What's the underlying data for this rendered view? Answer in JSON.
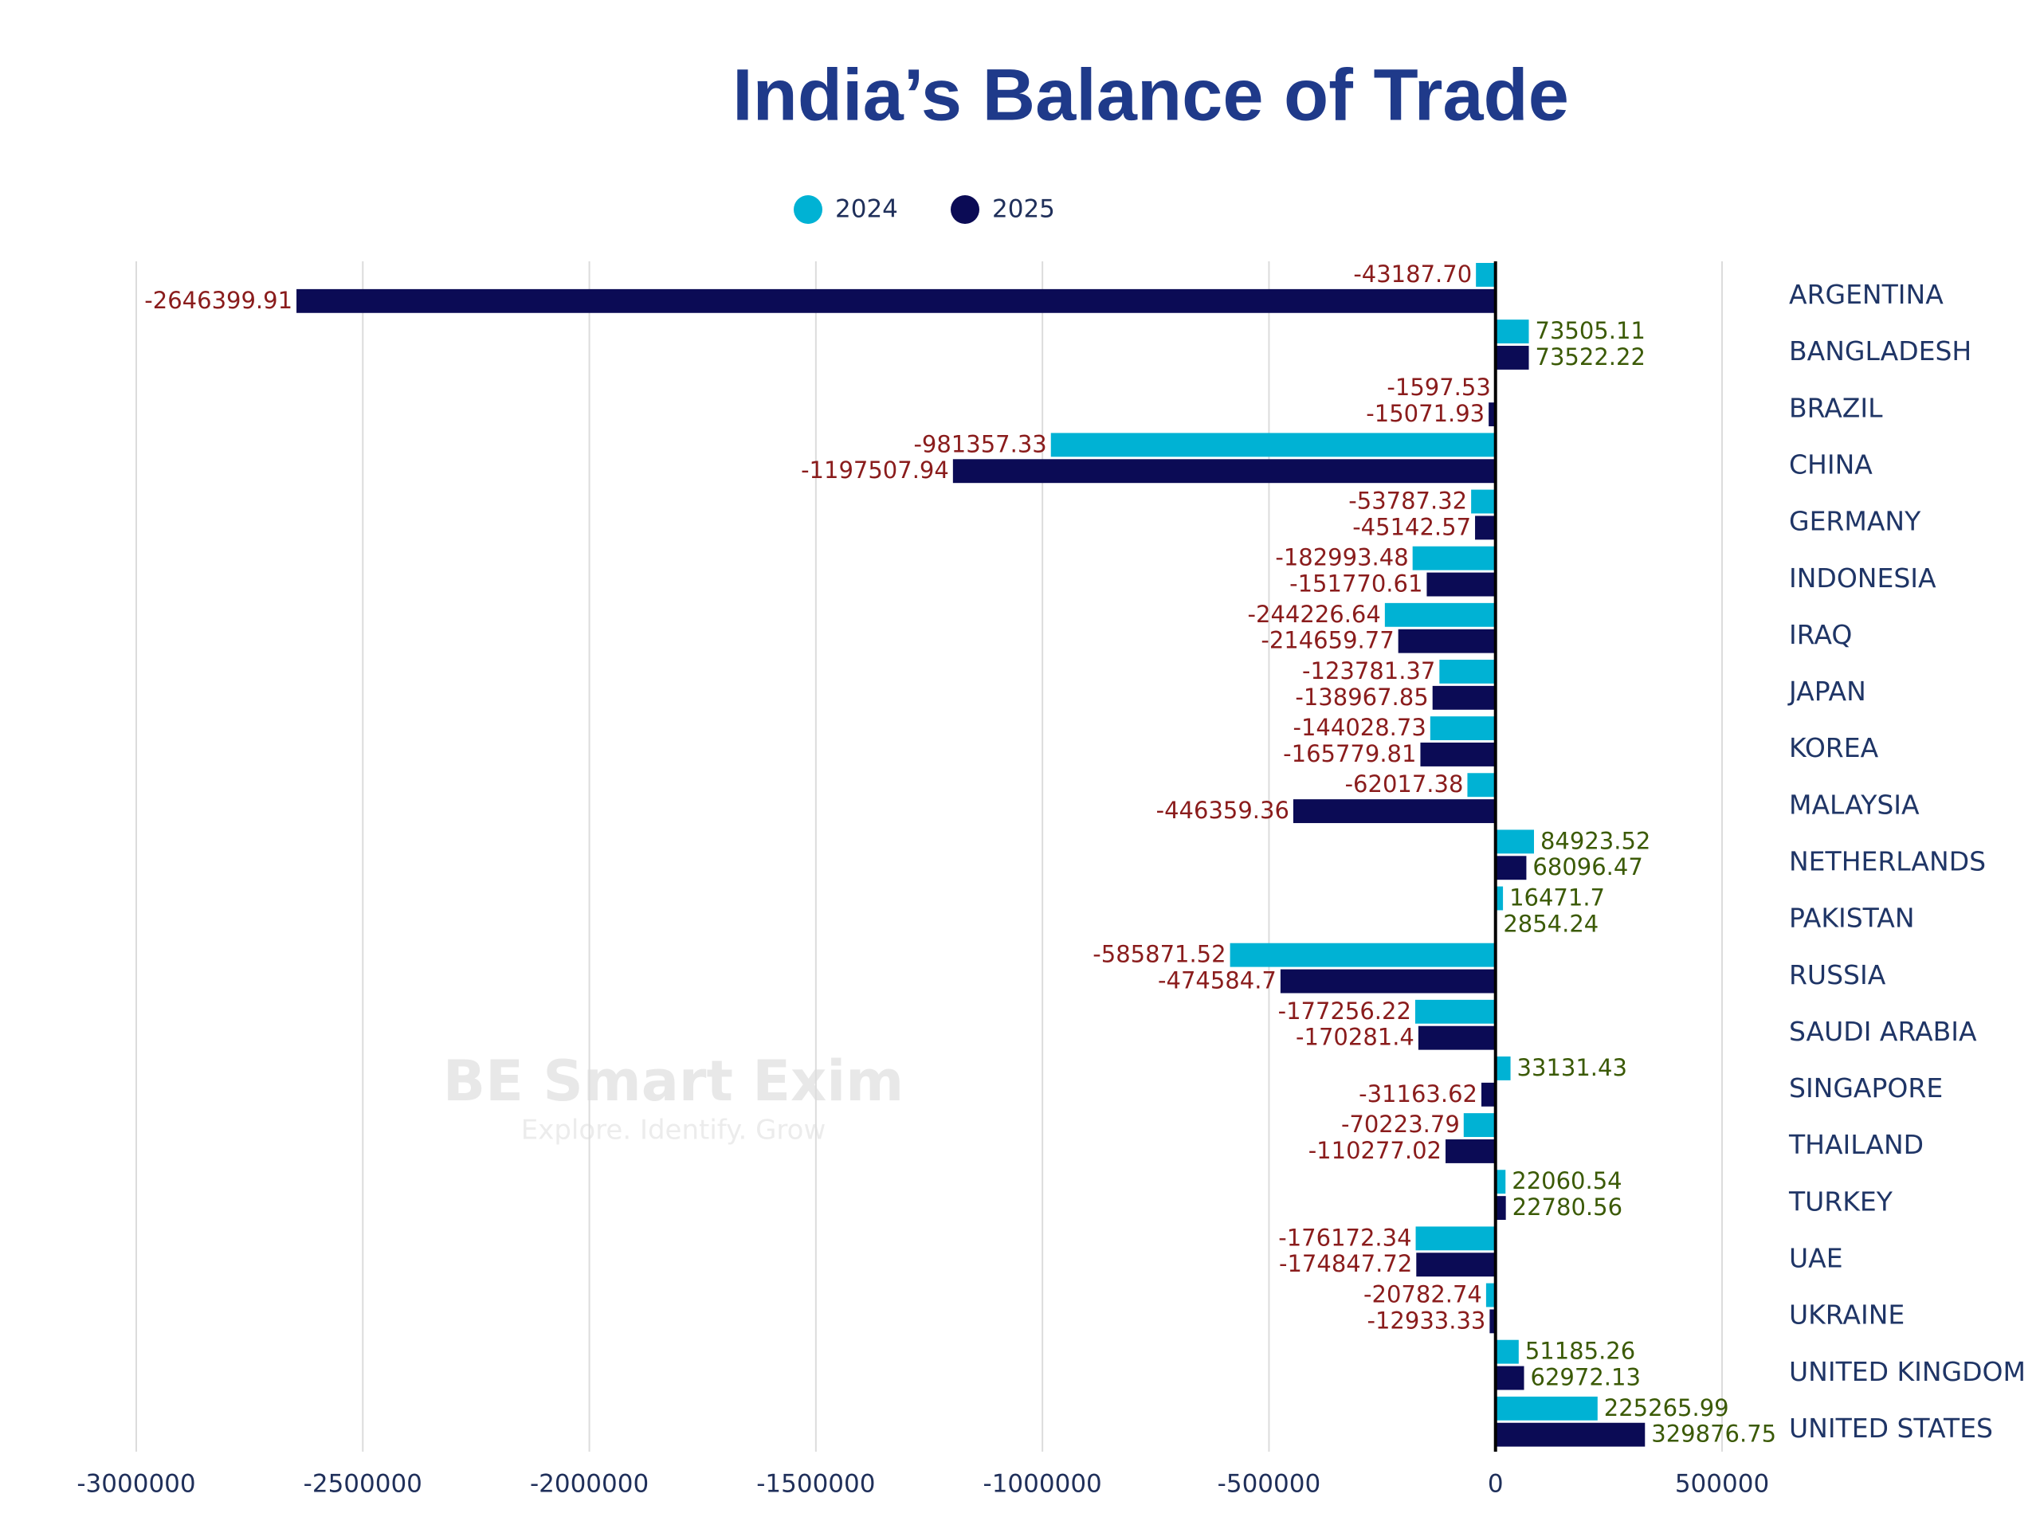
{
  "chart_data": {
    "type": "hbar",
    "title": "India’s Balance of Trade",
    "categories": [
      "ARGENTINA",
      "BANGLADESH",
      "BRAZIL",
      "CHINA",
      "GERMANY",
      "INDONESIA",
      "IRAQ",
      "JAPAN",
      "KOREA",
      "MALAYSIA",
      "NETHERLANDS",
      "PAKISTAN",
      "RUSSIA",
      "SAUDI ARABIA",
      "SINGAPORE",
      "THAILAND",
      "TURKEY",
      "UAE",
      "UKRAINE",
      "UNITED KINGDOM",
      "UNITED STATES"
    ],
    "series": [
      {
        "name": "2024",
        "color": "#00b2d4",
        "values": [
          -43187.7,
          73505.11,
          -1597.53,
          -981357.33,
          -53787.32,
          -182993.48,
          -244226.64,
          -123781.37,
          -144028.73,
          -62017.38,
          84923.52,
          16471.7,
          -585871.52,
          -177256.22,
          33131.43,
          -70223.79,
          22060.54,
          -176172.34,
          -20782.74,
          51185.26,
          225265.99
        ],
        "value_labels": [
          "-43187.70",
          "73505.11",
          "-1597.53",
          "-981357.33",
          "-53787.32",
          "-182993.48",
          "-244226.64",
          "-123781.37",
          "-144028.73",
          "-62017.38",
          "84923.52",
          "16471.7",
          "-585871.52",
          "-177256.22",
          "33131.43",
          "-70223.79",
          "22060.54",
          "-176172.34",
          "-20782.74",
          "51185.26",
          "225265.99"
        ]
      },
      {
        "name": "2025",
        "color": "#0b0b55",
        "values": [
          -2646399.91,
          73522.22,
          -15071.93,
          -1197507.94,
          -45142.57,
          -151770.61,
          -214659.77,
          -138967.85,
          -165779.81,
          -446359.36,
          68096.47,
          2854.24,
          -474584.7,
          -170281.4,
          -31163.62,
          -110277.02,
          22780.56,
          -174847.72,
          -12933.33,
          62972.13,
          329876.75
        ],
        "value_labels": [
          "-2646399.91",
          "73522.22",
          "-15071.93",
          "-1197507.94",
          "-45142.57",
          "-151770.61",
          "-214659.77",
          "-138967.85",
          "-165779.81",
          "-446359.36",
          "68096.47",
          "2854.24",
          "-474584.7",
          "-170281.4",
          "-31163.62",
          "-110277.02",
          "22780.56",
          "-174847.72",
          "-12933.33",
          "62972.13",
          "329876.75"
        ]
      }
    ],
    "xlim": [
      -3000000,
      500000
    ],
    "xticks": [
      -3000000,
      -2500000,
      -2000000,
      -1500000,
      -1000000,
      -500000,
      0,
      500000
    ],
    "grid": true,
    "watermark": {
      "brand": "BE Smart Exim",
      "tagline": "Explore. Identify. Grow"
    }
  }
}
